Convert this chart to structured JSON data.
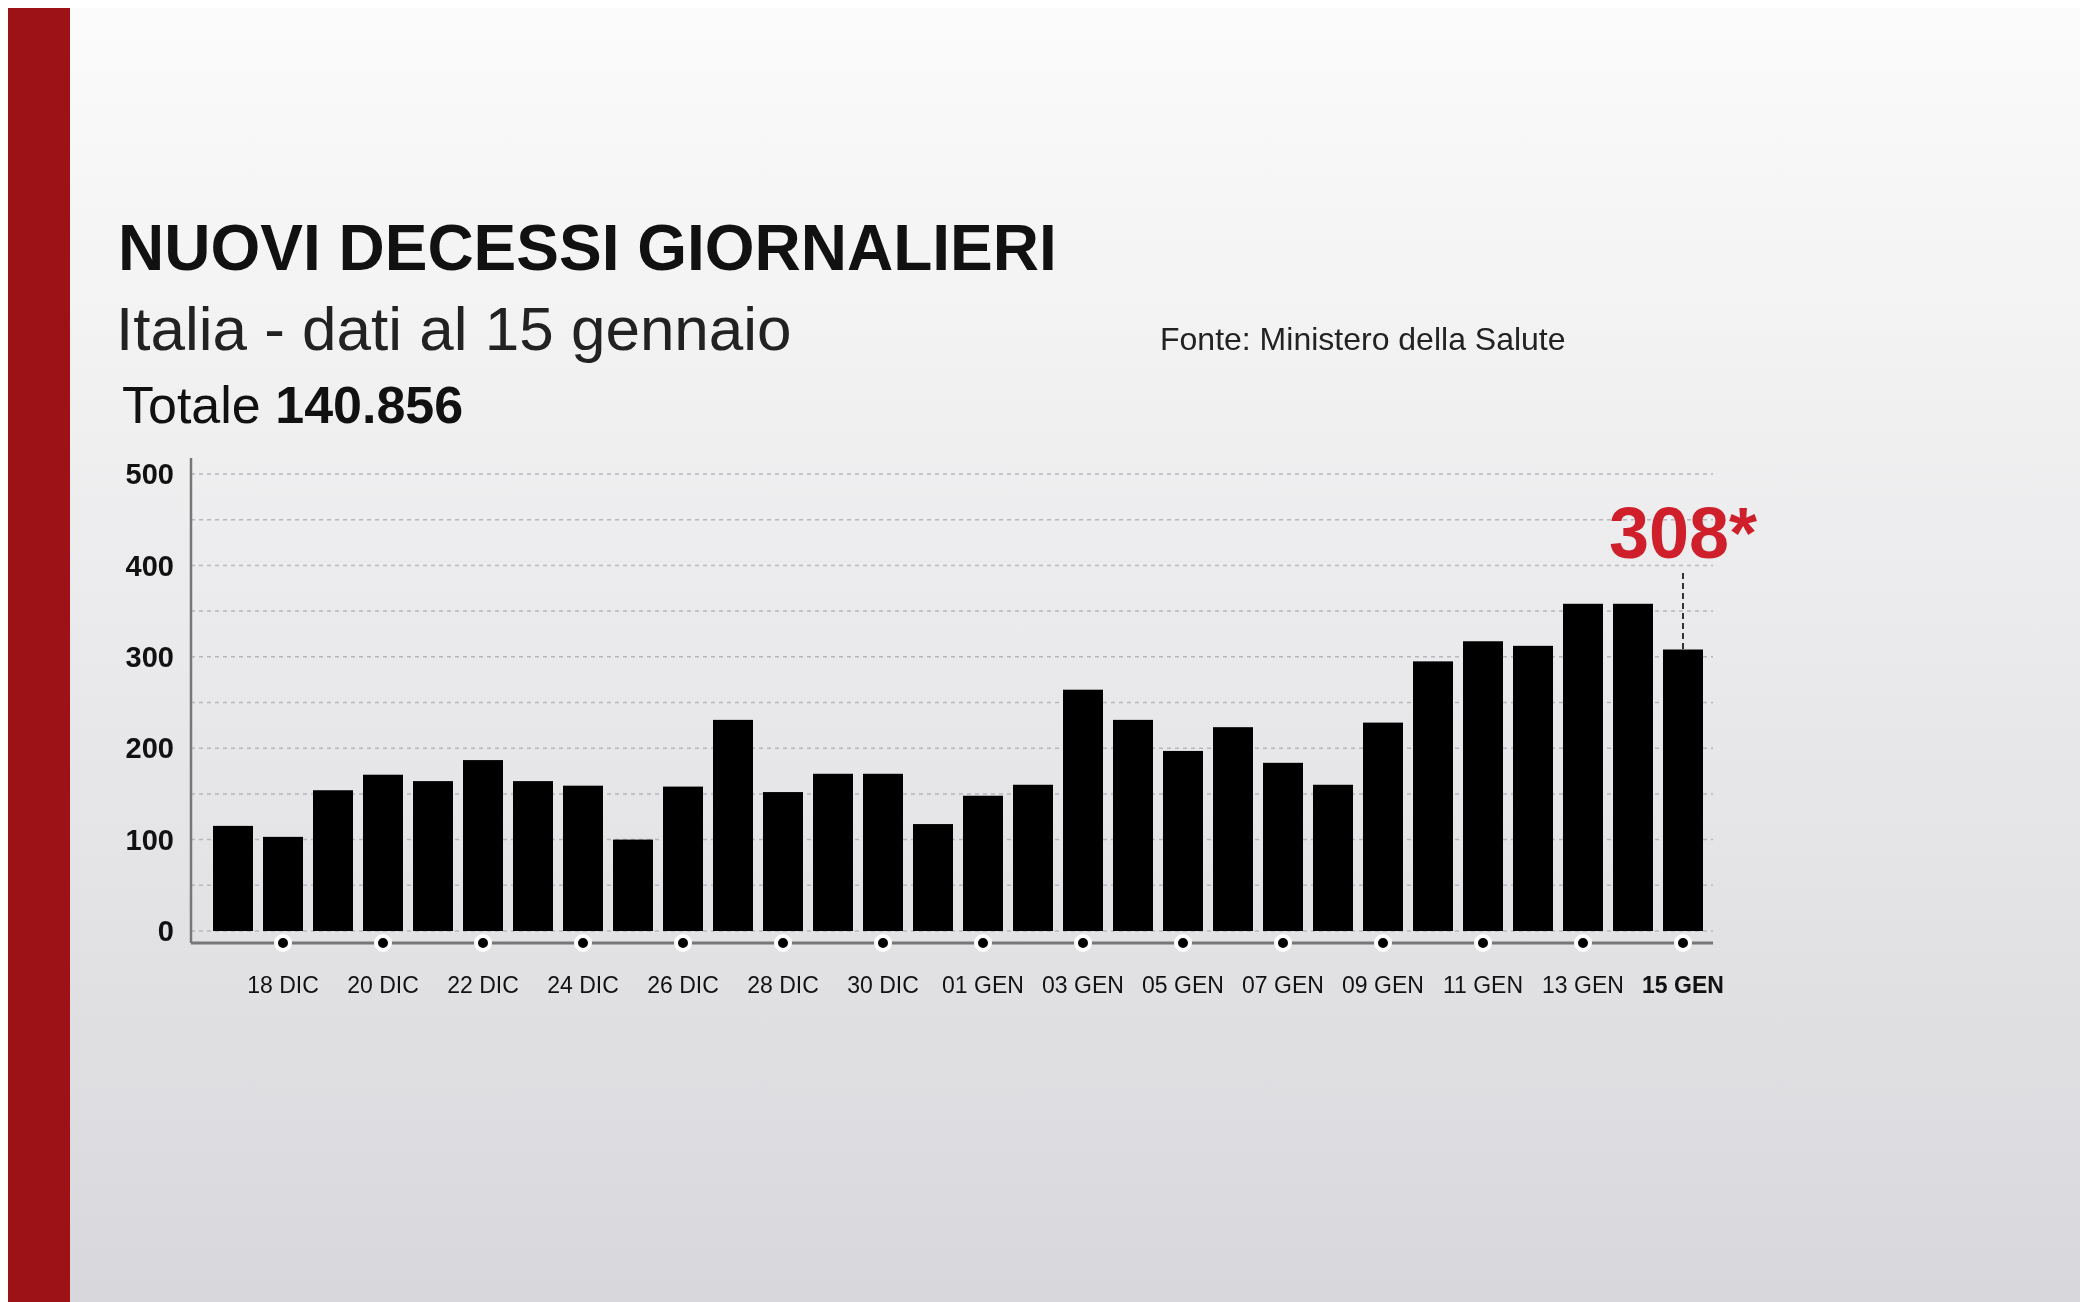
{
  "chart_data": {
    "type": "bar",
    "title": "NUOVI DECESSI GIORNALIERI",
    "subtitle": "Italia - dati al 15 gennaio",
    "annotations": [
      "Totale 140.856",
      "Fonte: Ministero della Salute"
    ],
    "categories": [
      null,
      "18 DIC",
      null,
      "20 DIC",
      null,
      "22 DIC",
      null,
      "24 DIC",
      null,
      "26 DIC",
      null,
      "28 DIC",
      null,
      "30 DIC",
      null,
      "01 GEN",
      null,
      "03 GEN",
      null,
      "05 GEN",
      null,
      "07 GEN",
      null,
      "09 GEN",
      null,
      "11 GEN",
      null,
      "13 GEN",
      null,
      "15 GEN"
    ],
    "values": [
      115,
      103,
      154,
      171,
      164,
      187,
      164,
      159,
      100,
      158,
      231,
      152,
      172,
      172,
      117,
      148,
      160,
      264,
      231,
      197,
      223,
      184,
      160,
      228,
      295,
      317,
      312,
      358,
      358,
      308
    ],
    "value_labels": [
      null,
      null,
      null,
      null,
      null,
      null,
      null,
      null,
      null,
      null,
      null,
      null,
      null,
      null,
      null,
      null,
      null,
      null,
      null,
      null,
      null,
      null,
      null,
      null,
      null,
      null,
      null,
      null,
      null,
      "308*"
    ],
    "color": "#000000",
    "ylim": [
      0,
      500
    ],
    "yticks": [
      0,
      {
        "value": 50,
        "label": null
      },
      100,
      {
        "value": 150,
        "label": null
      },
      200,
      {
        "value": 250,
        "label": null
      },
      300,
      {
        "value": 350,
        "label": null
      },
      400,
      {
        "value": 450,
        "label": null
      },
      500
    ],
    "grid": "y"
  }
}
